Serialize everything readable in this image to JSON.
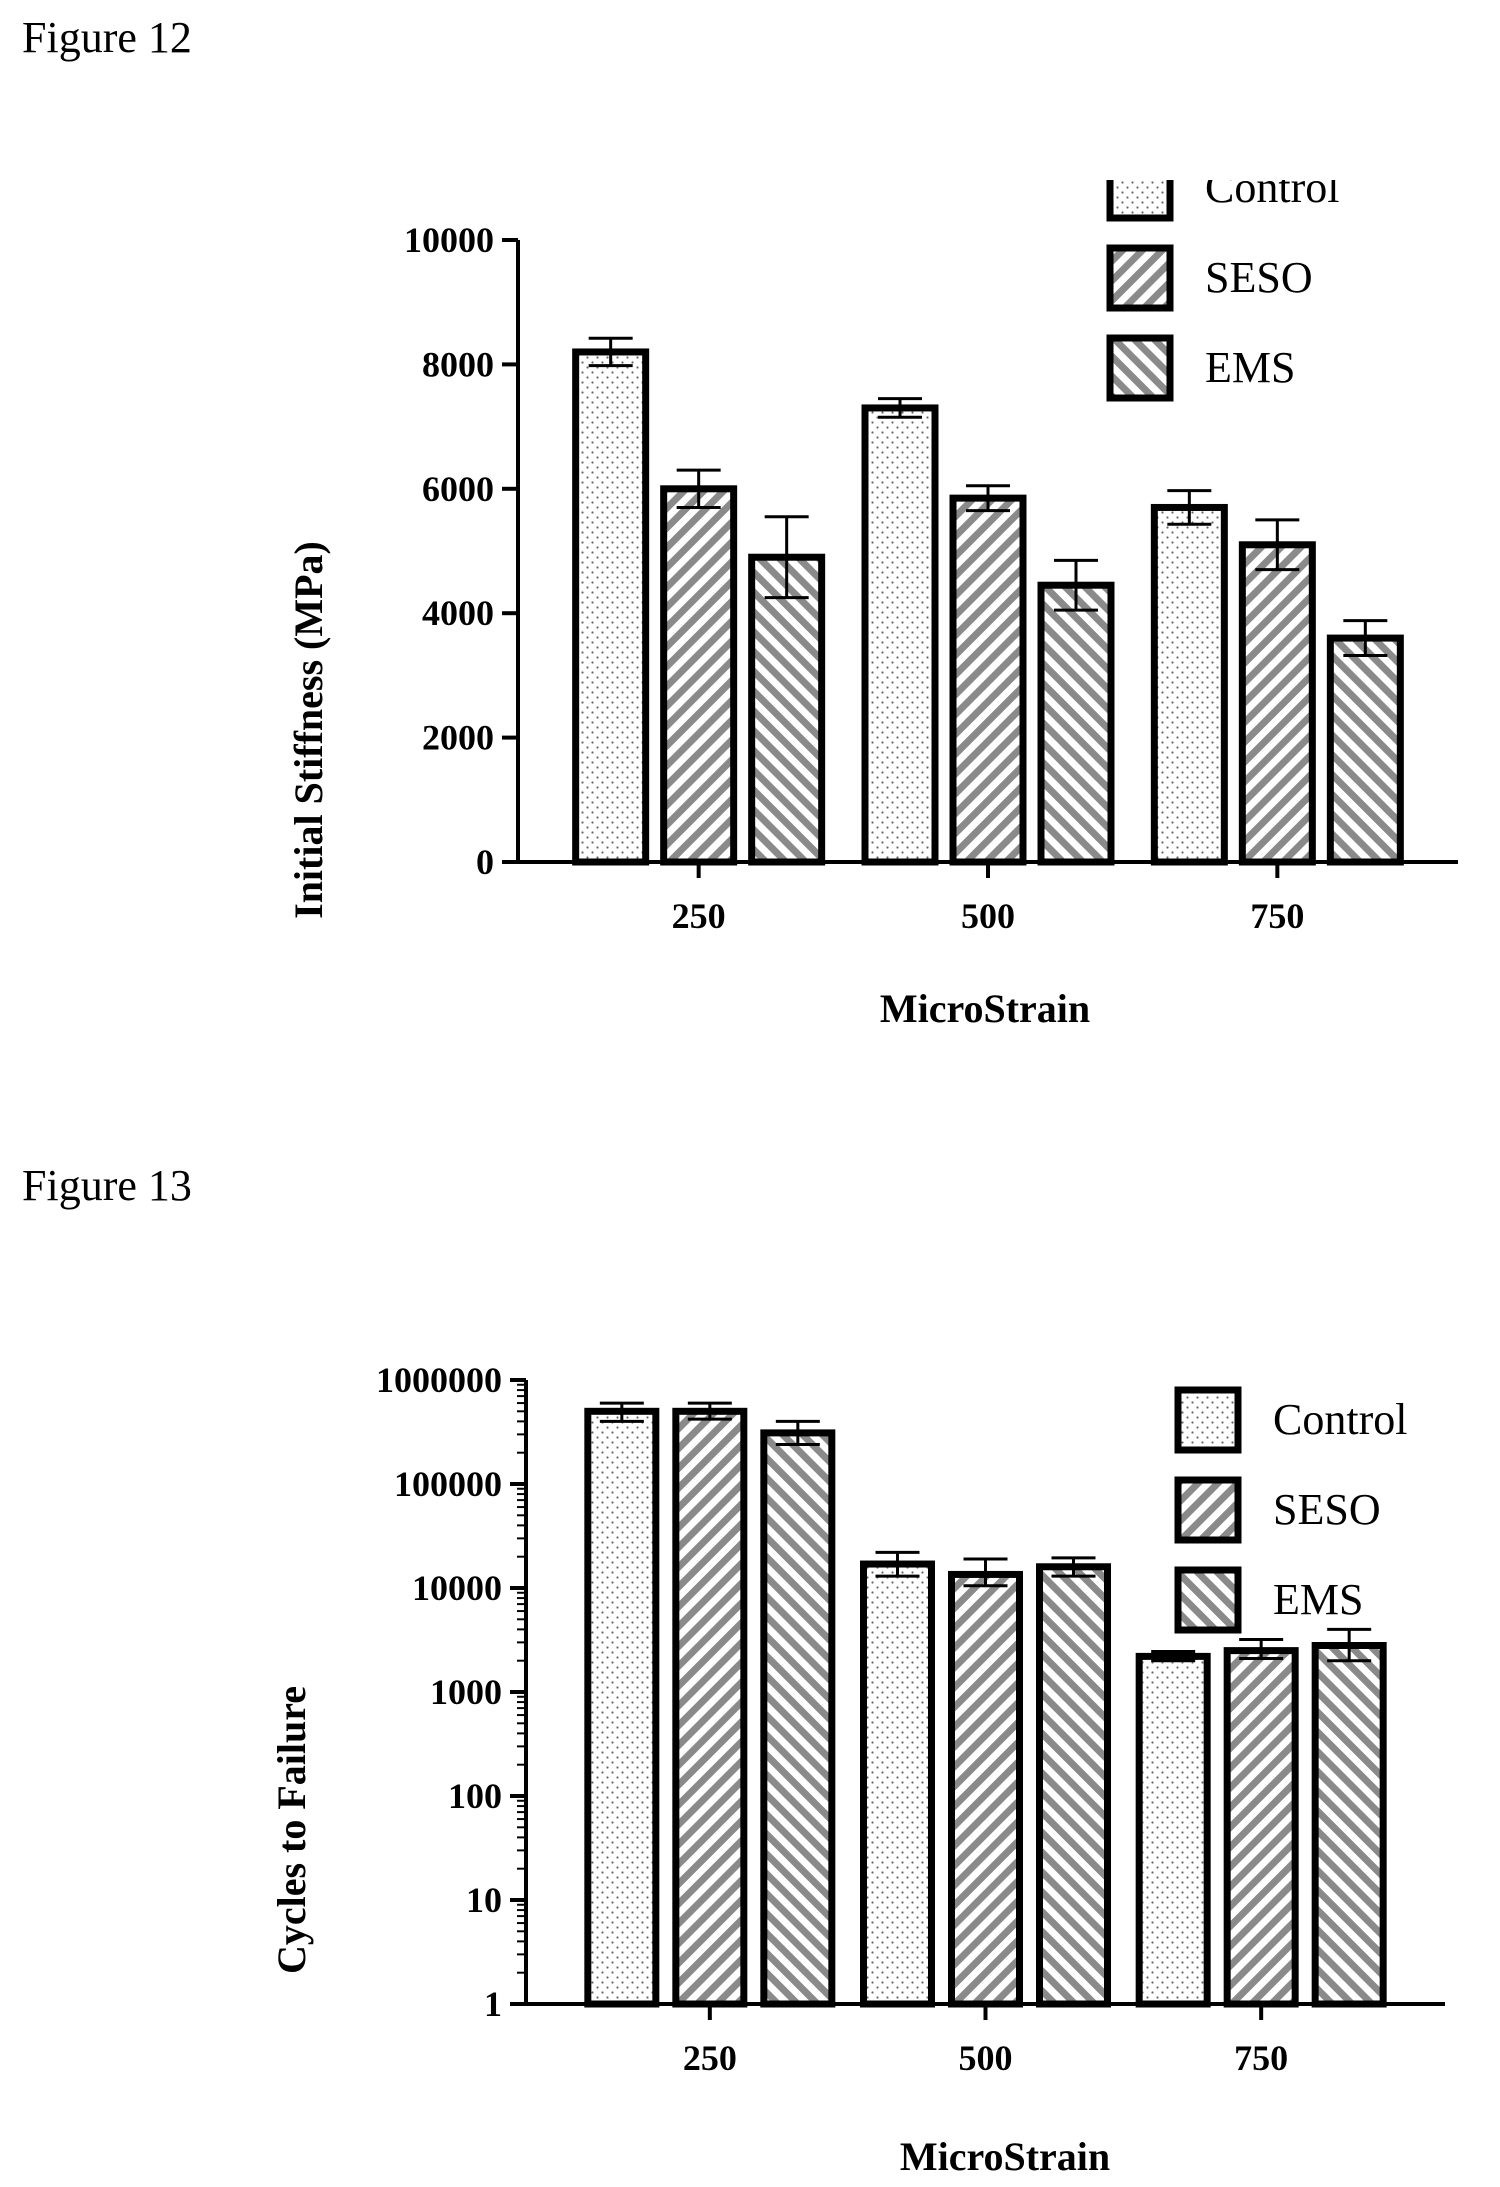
{
  "figures": [
    {
      "label": "Figure 12"
    },
    {
      "label": "Figure 13"
    }
  ],
  "chart_data": [
    {
      "type": "bar",
      "categories": [
        "250",
        "500",
        "750"
      ],
      "series": [
        {
          "name": "Control",
          "values": [
            8200,
            7300,
            5700
          ],
          "errors": [
            220,
            150,
            270
          ],
          "pattern": "dots"
        },
        {
          "name": "SESO",
          "values": [
            6000,
            5850,
            5100
          ],
          "errors": [
            300,
            200,
            400
          ],
          "pattern": "diag-down"
        },
        {
          "name": "EMS",
          "values": [
            4900,
            4450,
            3600
          ],
          "errors": [
            650,
            400,
            280
          ],
          "pattern": "diag-up"
        }
      ],
      "xlabel": "MicroStrain",
      "ylabel": "Initial Stiffness (MPa)",
      "ylim": [
        0,
        10000
      ],
      "yticks": [
        0,
        2000,
        4000,
        6000,
        8000,
        10000
      ],
      "yscale": "linear",
      "legend": "top-right",
      "grid": false
    },
    {
      "type": "bar",
      "categories": [
        "250",
        "500",
        "750"
      ],
      "series": [
        {
          "name": "Control",
          "values": [
            500000,
            17000,
            2200
          ],
          "errors_hi": [
            600000,
            22000,
            2450
          ],
          "errors_lo": [
            400000,
            13000,
            2000
          ],
          "pattern": "dots"
        },
        {
          "name": "SESO",
          "values": [
            500000,
            13500,
            2500
          ],
          "errors_hi": [
            600000,
            19000,
            3200
          ],
          "errors_lo": [
            420000,
            10500,
            2100
          ],
          "pattern": "diag-down"
        },
        {
          "name": "EMS",
          "values": [
            310000,
            16000,
            2800
          ],
          "errors_hi": [
            400000,
            19500,
            4000
          ],
          "errors_lo": [
            240000,
            13000,
            2000
          ],
          "pattern": "diag-up"
        }
      ],
      "xlabel": "MicroStrain",
      "ylabel": "Cycles to Failure",
      "ylim": [
        1,
        1000000
      ],
      "yticks": [
        1,
        10,
        100,
        1000,
        10000,
        100000,
        1000000
      ],
      "yscale": "log",
      "legend": "top-right",
      "grid": false
    }
  ]
}
